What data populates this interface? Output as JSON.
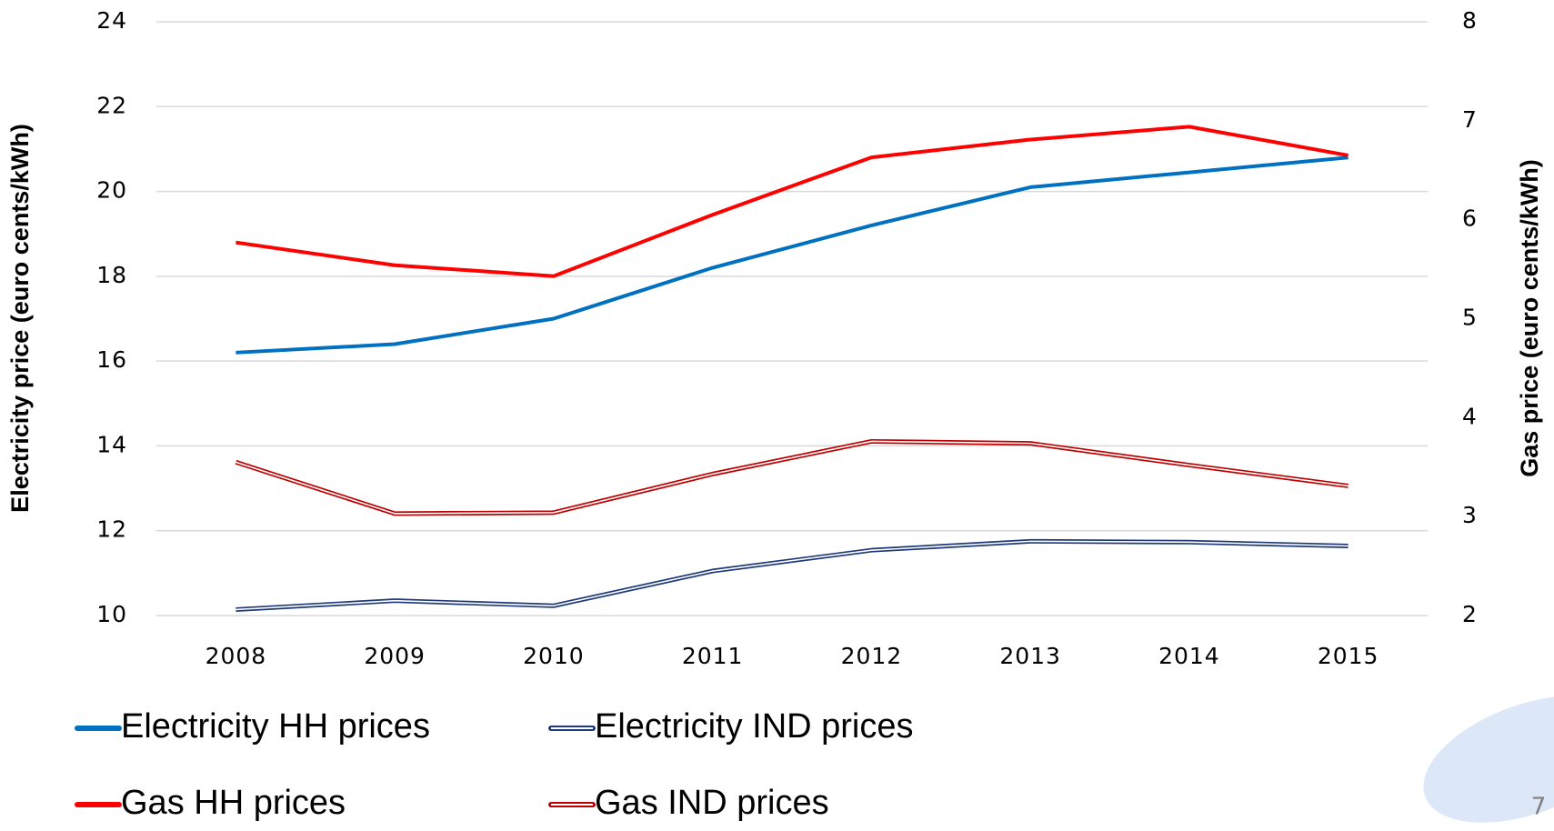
{
  "chart_data": {
    "type": "line",
    "categories": [
      "2008",
      "2009",
      "2010",
      "2011",
      "2012",
      "2013",
      "2014",
      "2015"
    ],
    "ylabel": "Electricity price (euro cents/kWh)",
    "y2label": "Gas price (euro cents/kWh)",
    "ylim": [
      10,
      24
    ],
    "yticks": [
      10,
      12,
      14,
      16,
      18,
      20,
      22,
      24
    ],
    "y2lim": [
      2,
      8
    ],
    "y2ticks": [
      2,
      3,
      4,
      5,
      6,
      7,
      8
    ],
    "grid": true,
    "series": [
      {
        "name": "Electricity HH prices",
        "color": "#0070c0",
        "line_style": "solid",
        "axis": "y",
        "values": [
          16.2,
          16.4,
          17.0,
          18.2,
          19.2,
          20.1,
          20.45,
          20.8
        ]
      },
      {
        "name": "Electricity IND prices",
        "color": "#1f3a7a",
        "line_style": "double",
        "axis": "y",
        "values": [
          10.14,
          10.35,
          10.23,
          11.05,
          11.54,
          11.75,
          11.73,
          11.64
        ]
      },
      {
        "name": "Gas HH prices",
        "color": "#ff0000",
        "line_style": "solid",
        "axis": "y2",
        "values": [
          5.77,
          5.54,
          5.43,
          6.05,
          6.63,
          6.81,
          6.94,
          6.65
        ]
      },
      {
        "name": "Gas IND prices",
        "color": "#c00000",
        "line_style": "double",
        "axis": "y2",
        "values": [
          3.55,
          3.03,
          3.04,
          3.43,
          3.76,
          3.74,
          3.52,
          3.31
        ]
      }
    ],
    "page_number": "7"
  }
}
